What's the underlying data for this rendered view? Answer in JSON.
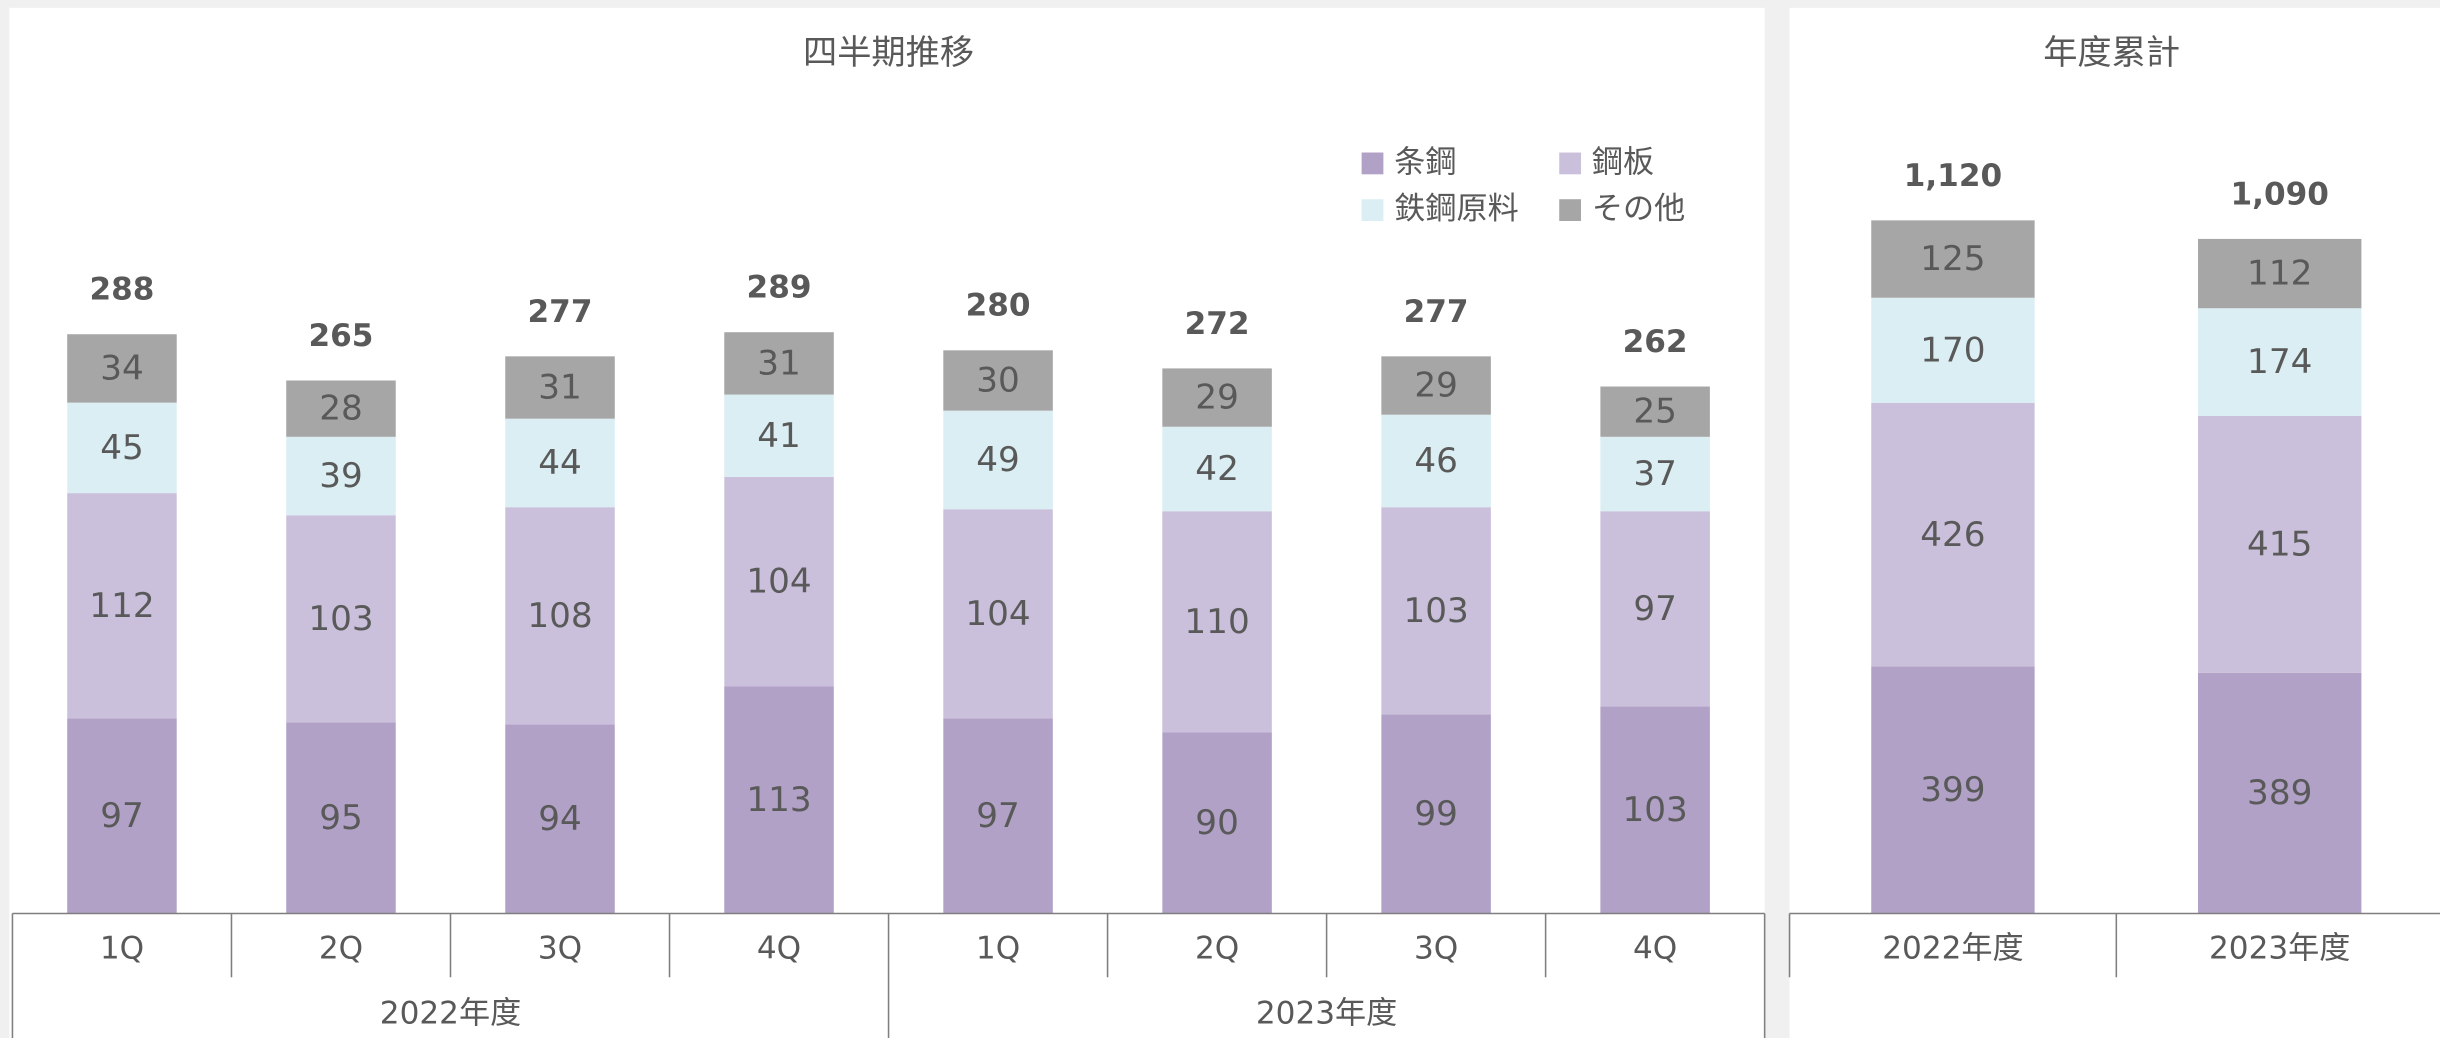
{
  "chart_data": [
    {
      "type": "bar",
      "stacked": true,
      "title": "四半期推移",
      "categories": [
        "1Q",
        "2Q",
        "3Q",
        "4Q",
        "1Q",
        "2Q",
        "3Q",
        "4Q"
      ],
      "groups": [
        "2022年度",
        "2023年度"
      ],
      "series": [
        {
          "name": "条鋼",
          "color": "#b1a1c7",
          "values": [
            97,
            95,
            94,
            113,
            97,
            90,
            99,
            103
          ]
        },
        {
          "name": "鋼板",
          "color": "#cbc0db",
          "values": [
            112,
            103,
            108,
            104,
            104,
            110,
            103,
            97
          ]
        },
        {
          "name": "鉄鋼原料",
          "color": "#daeef3",
          "values": [
            45,
            39,
            44,
            41,
            49,
            42,
            46,
            37
          ]
        },
        {
          "name": "その他",
          "color": "#a6a6a6",
          "values": [
            34,
            28,
            31,
            31,
            30,
            29,
            29,
            25
          ]
        }
      ],
      "totals": [
        288,
        265,
        277,
        289,
        280,
        272,
        277,
        262
      ],
      "ylim": [
        0,
        400
      ],
      "legend": "top-right"
    },
    {
      "type": "bar",
      "stacked": true,
      "title": "年度累計",
      "categories": [
        "2022年度",
        "2023年度"
      ],
      "series": [
        {
          "color": "#b1a1c7",
          "values": [
            399,
            389
          ]
        },
        {
          "color": "#cbc0db",
          "values": [
            426,
            415
          ]
        },
        {
          "color": "#daeef3",
          "values": [
            170,
            174
          ]
        },
        {
          "color": "#a6a6a6",
          "values": [
            125,
            112
          ]
        }
      ],
      "totals": [
        1120,
        1090
      ],
      "total_labels": [
        "1,120",
        "1,090"
      ],
      "ylim": [
        0,
        1300
      ]
    }
  ]
}
